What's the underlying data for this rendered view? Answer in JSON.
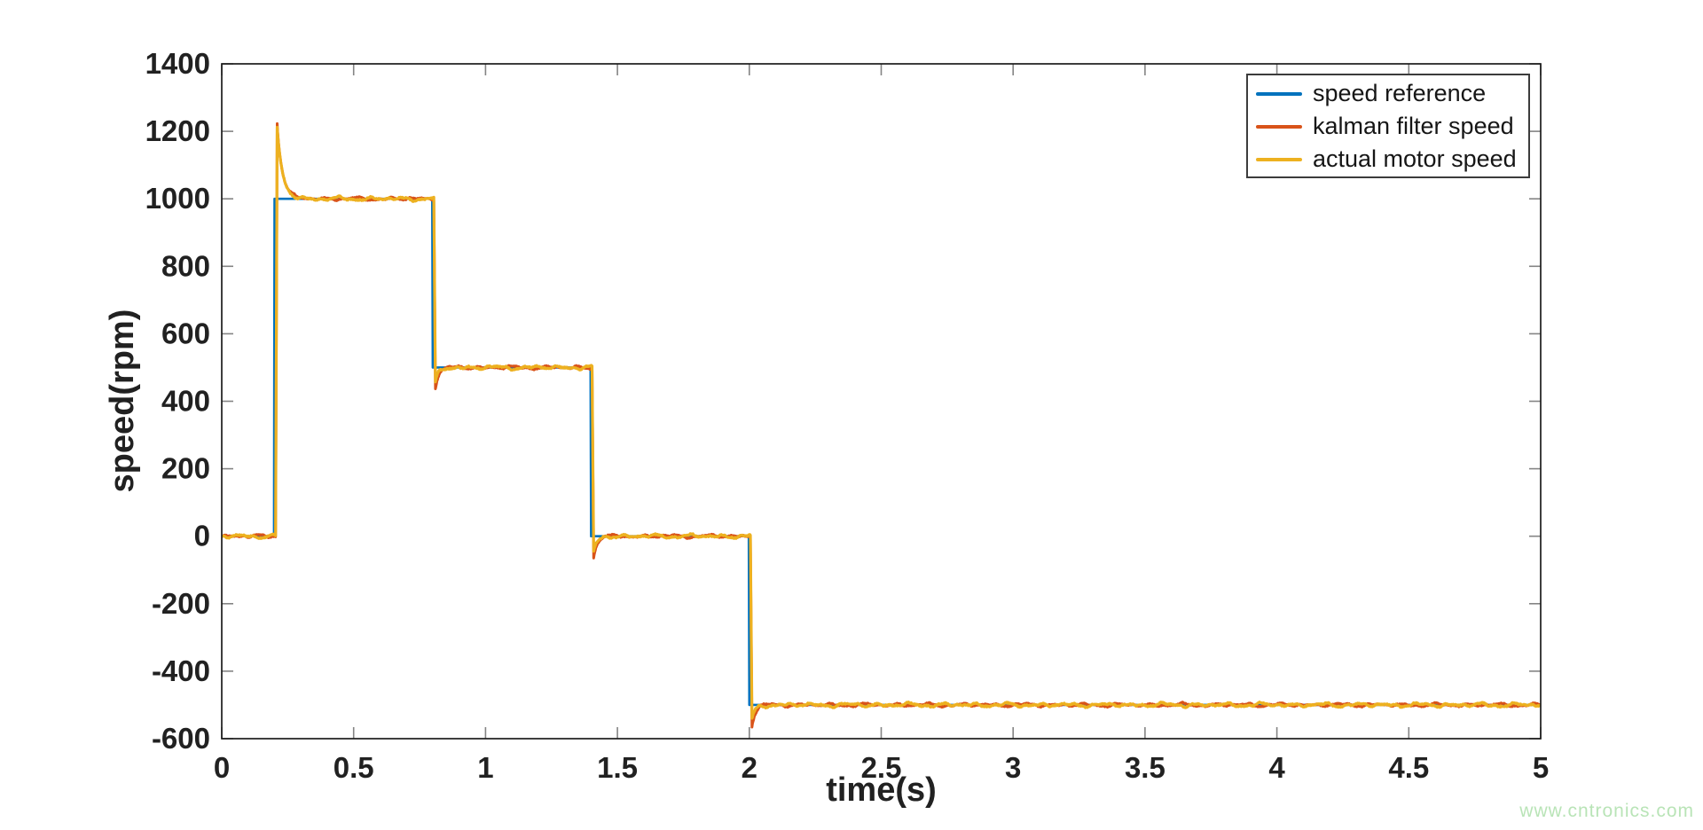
{
  "watermark": {
    "text": "www.cntronics.com",
    "color": "#b9e4b7"
  },
  "chart_data": {
    "type": "line",
    "title": "",
    "xlabel": "time(s)",
    "ylabel": "speed(rpm)",
    "xlim": [
      0,
      5
    ],
    "ylim": [
      -600,
      1400
    ],
    "xticks": [
      0,
      0.5,
      1,
      1.5,
      2,
      2.5,
      3,
      3.5,
      4,
      4.5,
      5
    ],
    "yticks": [
      -600,
      -400,
      -200,
      0,
      200,
      400,
      600,
      800,
      1000,
      1200,
      1400
    ],
    "grid": false,
    "legend_position": "top-right",
    "axis_color": "#1c1c1c",
    "tick_color": "#848484",
    "tick_label_color": "#212121",
    "reference_steps": [
      {
        "start": 0.0,
        "end": 0.2,
        "value": 0
      },
      {
        "start": 0.2,
        "end": 0.8,
        "value": 1000
      },
      {
        "start": 0.8,
        "end": 1.4,
        "value": 500
      },
      {
        "start": 1.4,
        "end": 2.0,
        "value": 0
      },
      {
        "start": 2.0,
        "end": 5.0,
        "value": -500
      }
    ],
    "series": [
      {
        "name": "speed reference",
        "color": "#0072BD",
        "role": "reference",
        "noise_rpm": 0
      },
      {
        "name": "kalman filter speed",
        "color": "#D95319",
        "role": "estimate",
        "noise_rpm": 6,
        "overshoots": [
          {
            "t": 0.2,
            "peak": 1225
          },
          {
            "t": 0.8,
            "peak": 443
          },
          {
            "t": 1.4,
            "peak": -64
          },
          {
            "t": 2.0,
            "peak": -562
          }
        ]
      },
      {
        "name": "actual motor speed",
        "color": "#EDB120",
        "role": "measured",
        "noise_rpm": 7,
        "overshoots": [
          {
            "t": 0.2,
            "peak": 1212
          },
          {
            "t": 0.8,
            "peak": 453
          },
          {
            "t": 1.4,
            "peak": -50
          },
          {
            "t": 2.0,
            "peak": -546
          }
        ]
      }
    ]
  }
}
